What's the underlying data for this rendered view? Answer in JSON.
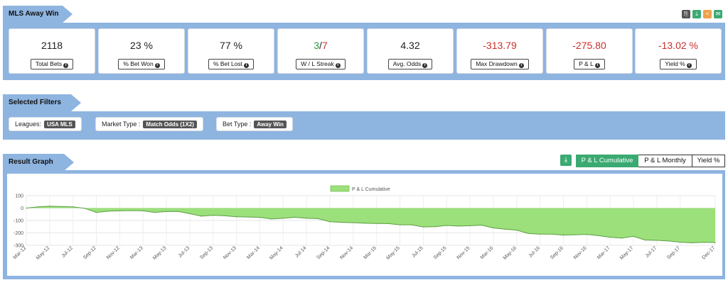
{
  "header": {
    "title": "MLS Away Win"
  },
  "stats": [
    {
      "value": "2118",
      "label": "Total Bets"
    },
    {
      "value": "23 %",
      "label": "% Bet Won"
    },
    {
      "value": "77 %",
      "label": "% Bet Lost"
    },
    {
      "value_wins": "3",
      "value_sep": "/",
      "value_losses": "7",
      "label": "W / L Streak"
    },
    {
      "value": "4.32",
      "label": "Avg. Odds"
    },
    {
      "value": "-313.79",
      "label": "Max Drawdown"
    },
    {
      "value": "-275.80",
      "label": "P & L"
    },
    {
      "value": "-13.02 %",
      "label": "Yield %"
    }
  ],
  "top_icons": [
    {
      "name": "copy-icon",
      "color": "#555555"
    },
    {
      "name": "download-icon",
      "color": "#3aaa72"
    },
    {
      "name": "share-icon",
      "color": "#f0a04b"
    },
    {
      "name": "email-icon",
      "color": "#3aaa72"
    }
  ],
  "filters": {
    "title": "Selected Filters",
    "items": [
      {
        "label": "Leagues:",
        "value": "USA MLS"
      },
      {
        "label": "Market Type :",
        "value": "Match Odds (1X2)"
      },
      {
        "label": "Bet Type :",
        "value": "Away Win"
      }
    ]
  },
  "graph": {
    "title": "Result Graph",
    "buttons": [
      "P & L Cumulative",
      "P & L Monthly",
      "Yield %"
    ],
    "active_button": "P & L Cumulative"
  },
  "colors": {
    "accent": "#3aaa72",
    "band": "#8eb4e0",
    "negative": "#c9302c",
    "positive": "#2e9b3e",
    "area": "#9be07a"
  },
  "chart_data": {
    "type": "area",
    "series": [
      {
        "name": "P & L Cumulative",
        "color": "#9be07a"
      }
    ],
    "x": [
      "Mar-12",
      "Apr-12",
      "May-12",
      "Jun-12",
      "Jul-12",
      "Aug-12",
      "Sep-12",
      "Oct-12",
      "Nov-12",
      "Dec-12",
      "Mar-13",
      "Apr-13",
      "May-13",
      "Jun-13",
      "Jul-13",
      "Aug-13",
      "Sep-13",
      "Oct-13",
      "Nov-13",
      "Dec-13",
      "Mar-14",
      "Apr-14",
      "May-14",
      "Jun-14",
      "Jul-14",
      "Aug-14",
      "Sep-14",
      "Oct-14",
      "Nov-14",
      "Dec-14",
      "Mar-15",
      "Apr-15",
      "May-15",
      "Jun-15",
      "Jul-15",
      "Aug-15",
      "Sep-15",
      "Oct-15",
      "Nov-15",
      "Dec-15",
      "Mar-16",
      "Apr-16",
      "May-16",
      "Jun-16",
      "Jul-16",
      "Aug-16",
      "Sep-16",
      "Oct-16",
      "Nov-16",
      "Dec-16",
      "Mar-17",
      "Apr-17",
      "May-17",
      "Jun-17",
      "Jul-17",
      "Aug-17",
      "Sep-17",
      "Oct-17",
      "Nov-17",
      "Dec-17"
    ],
    "values": [
      0,
      10,
      15,
      12,
      10,
      -2,
      -35,
      -25,
      -22,
      -20,
      -22,
      -35,
      -28,
      -27,
      -45,
      -65,
      -58,
      -62,
      -70,
      -72,
      -75,
      -88,
      -82,
      -74,
      -82,
      -86,
      -110,
      -115,
      -118,
      -122,
      -124,
      -125,
      -135,
      -135,
      -152,
      -150,
      -140,
      -145,
      -142,
      -138,
      -160,
      -170,
      -178,
      -205,
      -210,
      -210,
      -218,
      -215,
      -212,
      -222,
      -235,
      -242,
      -228,
      -258,
      -260,
      -265,
      -275,
      -280,
      -276,
      -278
    ],
    "xtick_labels": [
      "Mar-12",
      "May-12",
      "Jul-12",
      "Sep-12",
      "Nov-12",
      "Mar-13",
      "May-13",
      "Jul-13",
      "Sep-13",
      "Nov-13",
      "Mar-14",
      "May-14",
      "Jul-14",
      "Sep-14",
      "Nov-14",
      "Mar-15",
      "May-15",
      "Jul-15",
      "Sep-15",
      "Nov-15",
      "Mar-16",
      "May-16",
      "Jul-16",
      "Sep-16",
      "Nov-16",
      "Mar-17",
      "May-17",
      "Jul-17",
      "Sep-17",
      "Dec-17"
    ],
    "yticks": [
      100,
      0,
      -100,
      -200,
      -300
    ],
    "ylim": [
      -300,
      100
    ],
    "legend": "top-center",
    "grid": true
  }
}
